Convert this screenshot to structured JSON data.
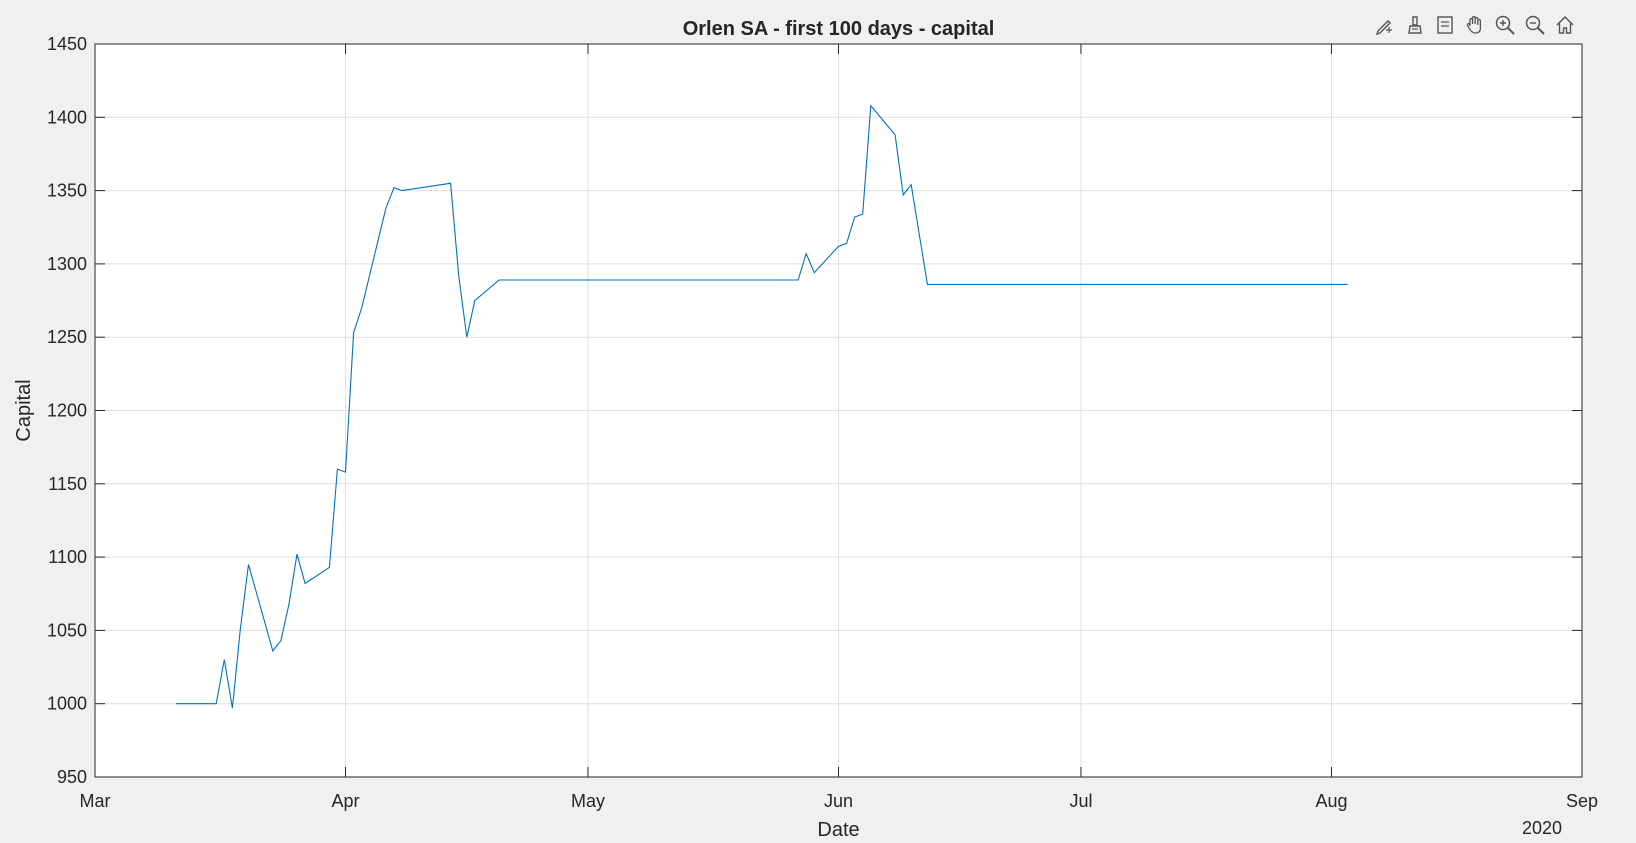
{
  "chart_data": {
    "type": "line",
    "title": "Orlen SA - first 100 days - capital",
    "xlabel": "Date",
    "ylabel": "Capital",
    "x_tick_labels": [
      "Mar",
      "Apr",
      "May",
      "Jun",
      "Jul",
      "Aug",
      "Sep"
    ],
    "x_tick_dates": [
      "2020-03-01",
      "2020-04-01",
      "2020-05-01",
      "2020-06-01",
      "2020-07-01",
      "2020-08-01",
      "2020-09-01"
    ],
    "x_year_label": "2020",
    "xlim": [
      "2020-03-01",
      "2020-09-01"
    ],
    "ylim": [
      950,
      1450
    ],
    "y_ticks": [
      950,
      1000,
      1050,
      1100,
      1150,
      1200,
      1250,
      1300,
      1350,
      1400,
      1450
    ],
    "grid": true,
    "line_color": "#0072BD",
    "series": [
      {
        "x": [
          "2020-03-11",
          "2020-03-16",
          "2020-03-17",
          "2020-03-18",
          "2020-03-19",
          "2020-03-20",
          "2020-03-23",
          "2020-03-24",
          "2020-03-25",
          "2020-03-26",
          "2020-03-27",
          "2020-03-30",
          "2020-03-31",
          "2020-04-01",
          "2020-04-02",
          "2020-04-03",
          "2020-04-06",
          "2020-04-07",
          "2020-04-08",
          "2020-04-14",
          "2020-04-15",
          "2020-04-16",
          "2020-04-17",
          "2020-04-20",
          "2020-04-21",
          "2020-05-27",
          "2020-05-28",
          "2020-05-29",
          "2020-06-01",
          "2020-06-02",
          "2020-06-03",
          "2020-06-04",
          "2020-06-05",
          "2020-06-08",
          "2020-06-09",
          "2020-06-10",
          "2020-06-12",
          "2020-06-15",
          "2020-08-03"
        ],
        "y": [
          1000,
          1000,
          1030,
          997,
          1052,
          1095,
          1036,
          1043,
          1068,
          1102,
          1082,
          1093,
          1160,
          1158,
          1253,
          1270,
          1338,
          1352,
          1350,
          1355,
          1292,
          1250,
          1275,
          1289,
          1289,
          1289,
          1307,
          1294,
          1312,
          1314,
          1332,
          1334,
          1408,
          1388,
          1347,
          1354,
          1286,
          1286,
          1286
        ]
      }
    ]
  },
  "toolbar": {
    "icons": [
      "edit-plot-icon",
      "brush-icon",
      "data-tips-icon",
      "pan-hand-icon",
      "zoom-in-icon",
      "zoom-out-icon",
      "home-icon"
    ]
  }
}
